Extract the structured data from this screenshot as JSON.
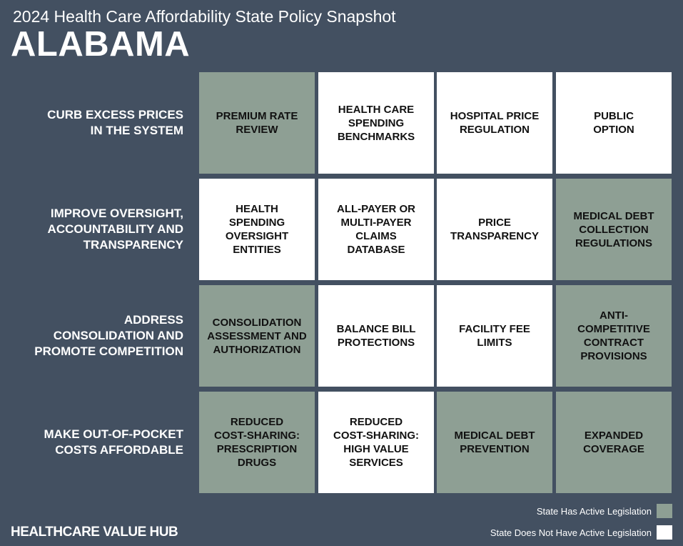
{
  "header": {
    "subtitle": "2024 Health Care Affordability State Policy Snapshot",
    "state": "ALABAMA"
  },
  "colors": {
    "background": "#435061",
    "active": "#8e9f94",
    "inactive": "#ffffff"
  },
  "rows": [
    {
      "label": "CURB EXCESS PRICES\nIN THE SYSTEM",
      "cells": [
        {
          "label": "PREMIUM RATE\nREVIEW",
          "active": true
        },
        {
          "label": "HEALTH CARE\nSPENDING\nBENCHMARKS",
          "active": false
        },
        {
          "label": "HOSPITAL PRICE\nREGULATION",
          "active": false
        },
        {
          "label": "PUBLIC\nOPTION",
          "active": false
        }
      ]
    },
    {
      "label": "IMPROVE OVERSIGHT,\nACCOUNTABILITY AND\nTRANSPARENCY",
      "cells": [
        {
          "label": "HEALTH\nSPENDING\nOVERSIGHT\nENTITIES",
          "active": false
        },
        {
          "label": "ALL-PAYER OR\nMULTI-PAYER\nCLAIMS\nDATABASE",
          "active": false
        },
        {
          "label": "PRICE\nTRANSPARENCY",
          "active": false
        },
        {
          "label": "MEDICAL DEBT\nCOLLECTION\nREGULATIONS",
          "active": true
        }
      ]
    },
    {
      "label": "ADDRESS\nCONSOLIDATION AND\nPROMOTE COMPETITION",
      "cells": [
        {
          "label": "CONSOLIDATION\nASSESSMENT AND\nAUTHORIZATION",
          "active": true
        },
        {
          "label": "BALANCE BILL\nPROTECTIONS",
          "active": false
        },
        {
          "label": "FACILITY FEE\nLIMITS",
          "active": false
        },
        {
          "label": "ANTI-\nCOMPETITIVE\nCONTRACT\nPROVISIONS",
          "active": true
        }
      ]
    },
    {
      "label": "MAKE OUT-OF-POCKET\nCOSTS AFFORDABLE",
      "cells": [
        {
          "label": "REDUCED\nCOST-SHARING:\nPRESCRIPTION\nDRUGS",
          "active": true
        },
        {
          "label": "REDUCED\nCOST-SHARING:\nHIGH VALUE\nSERVICES",
          "active": false
        },
        {
          "label": "MEDICAL DEBT\nPREVENTION",
          "active": true
        },
        {
          "label": "EXPANDED\nCOVERAGE",
          "active": true
        }
      ]
    }
  ],
  "legend": {
    "active_label": "State Has Active Legislation",
    "inactive_label": "State Does Not Have Active Legislation"
  },
  "brand": "HEALTHCARE VALUE HUB"
}
